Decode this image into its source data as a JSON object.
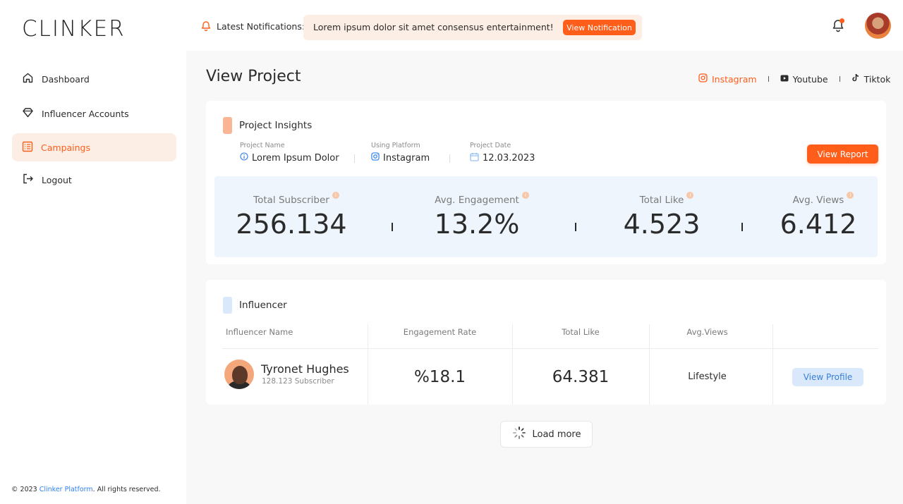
{
  "app": {
    "logo": "CLINKER"
  },
  "header": {
    "notifications_label": "Latest Notifications:",
    "notification_text": "Lorem ipsum dolor sit amet consensus entertainment!",
    "view_notification_label": "View Notification",
    "icons": [
      "bell-icon",
      "notification-bell-icon",
      "avatar"
    ]
  },
  "sidebar": {
    "items": [
      {
        "label": "Dashboard",
        "icon": "home-icon",
        "active": false
      },
      {
        "label": "Influencer Accounts",
        "icon": "diamond-icon",
        "active": false
      },
      {
        "label": "Campaings",
        "icon": "list-icon",
        "active": true
      },
      {
        "label": "Logout",
        "icon": "logout-icon",
        "active": false
      }
    ],
    "footer": {
      "prefix": "© 2023 ",
      "link": "Clinker Platform",
      "suffix": ". All rights reserved."
    }
  },
  "main": {
    "title": "View Project",
    "platforms": [
      {
        "label": "Instagram",
        "icon": "instagram-icon",
        "active": true
      },
      {
        "label": "Youtube",
        "icon": "youtube-icon",
        "active": false
      },
      {
        "label": "Tiktok",
        "icon": "tiktok-icon",
        "active": false
      }
    ],
    "insights": {
      "heading": "Project Insights",
      "project_name_label": "Project Name",
      "project_name_value": "Lorem Ipsum Dolor",
      "platform_label": "Using Platform",
      "platform_value": "Instagram",
      "date_label": "Project Date",
      "date_value": "12.03.2023",
      "view_report_label": "View Report",
      "stats": [
        {
          "label": "Total Subscriber",
          "value": "256.134"
        },
        {
          "label": "Avg. Engagement",
          "value": "13.2%"
        },
        {
          "label": "Total Like",
          "value": "4.523"
        },
        {
          "label": "Avg. Views",
          "value": "6.412"
        }
      ]
    },
    "influencer": {
      "heading": "Influencer",
      "columns": [
        "Influencer Name",
        "Engagement Rate",
        "Total Like",
        "Avg.Views"
      ],
      "rows": [
        {
          "name": "Tyronet Hughes",
          "subscribers": "128.123 Subscriber",
          "engagement": "%18.1",
          "total_like": "64.381",
          "avg_views": "Lifestyle",
          "action_label": "View Profile"
        }
      ]
    },
    "load_more_label": "Load more"
  },
  "colors": {
    "accent": "#ff5d1a",
    "accent_light": "#fdeee5",
    "blue_light": "#eef5fd",
    "blue_button": "#d9e9fb",
    "link": "#2f80ed"
  }
}
